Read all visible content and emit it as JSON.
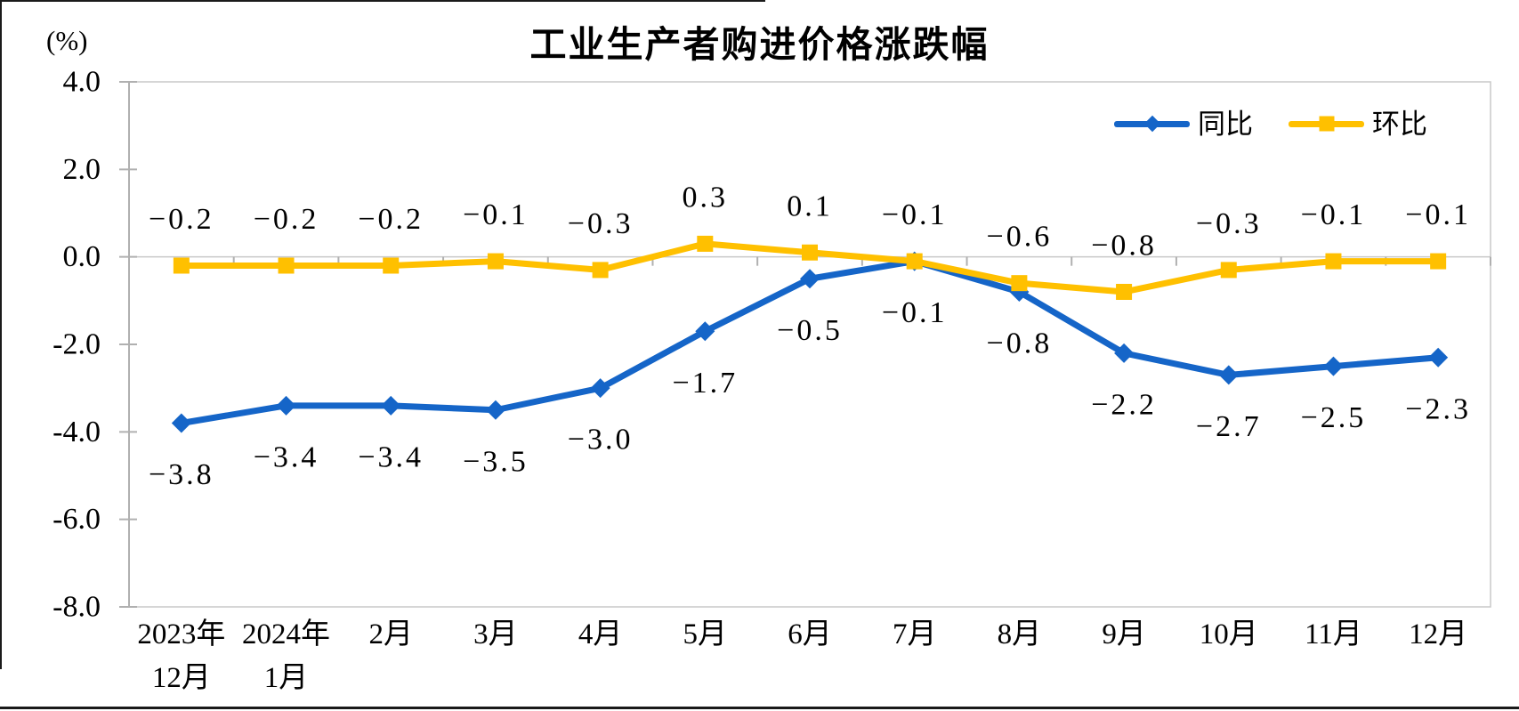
{
  "header": {
    "title": "工业生产者购进价格涨跌幅",
    "unit_label": "(%)"
  },
  "chart_data": {
    "type": "line",
    "title": "工业生产者购进价格涨跌幅",
    "ylabel": "(%)",
    "xlabel": "",
    "ylim": [
      -8.0,
      4.0
    ],
    "ytick_interval": 2.0,
    "ytick_labels": [
      "4.0",
      "2.0",
      "0.0",
      "-2.0",
      "-4.0",
      "-6.0",
      "-8.0"
    ],
    "grid": false,
    "legend_position": "top-right",
    "axis_color": "#c9c9c9",
    "axis_line_color": "#b0b0b0",
    "categories": [
      {
        "line1": "2023年",
        "line2": "12月"
      },
      {
        "line1": "2024年",
        "line2": "1月"
      },
      {
        "line1": "2月"
      },
      {
        "line1": "3月"
      },
      {
        "line1": "4月"
      },
      {
        "line1": "5月"
      },
      {
        "line1": "6月"
      },
      {
        "line1": "7月"
      },
      {
        "line1": "8月"
      },
      {
        "line1": "9月"
      },
      {
        "line1": "10月"
      },
      {
        "line1": "11月"
      },
      {
        "line1": "12月"
      }
    ],
    "series": [
      {
        "name": "同比",
        "color": "#1565c8",
        "marker": "diamond",
        "label_position": "below",
        "values": [
          -3.8,
          -3.4,
          -3.4,
          -3.5,
          -3.0,
          -1.7,
          -0.5,
          -0.1,
          -0.8,
          -2.2,
          -2.7,
          -2.5,
          -2.3
        ],
        "labels": [
          "−3.8",
          "−3.4",
          "−3.4",
          "−3.5",
          "−3.0",
          "−1.7",
          "−0.5",
          "−0.1",
          "−0.8",
          "−2.2",
          "−2.7",
          "−2.5",
          "−2.3"
        ]
      },
      {
        "name": "环比",
        "color": "#ffc000",
        "marker": "square",
        "label_position": "above",
        "values": [
          -0.2,
          -0.2,
          -0.2,
          -0.1,
          -0.3,
          0.3,
          0.1,
          -0.1,
          -0.6,
          -0.8,
          -0.3,
          -0.1,
          -0.1
        ],
        "labels": [
          "−0.2",
          "−0.2",
          "−0.2",
          "−0.1",
          "−0.3",
          "0.3",
          "0.1",
          "−0.1",
          "−0.6",
          "−0.8",
          "−0.3",
          "−0.1",
          "−0.1"
        ]
      }
    ]
  }
}
